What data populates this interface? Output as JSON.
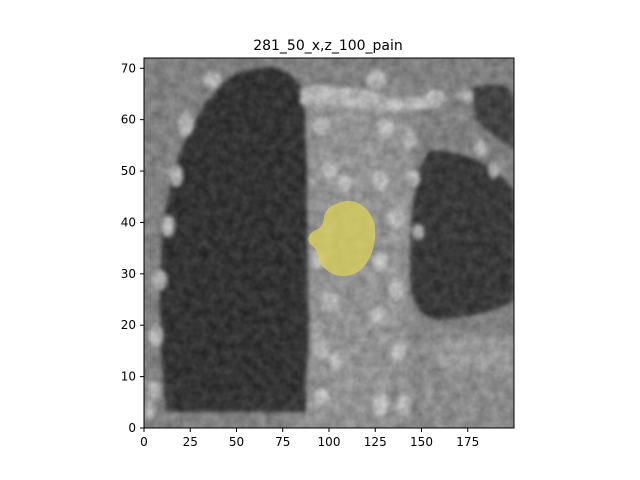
{
  "figure": {
    "title": "281_50_x,z_100_pain"
  },
  "axes": {
    "x_ticks": [
      {
        "value": 0,
        "label": "0"
      },
      {
        "value": 25,
        "label": "25"
      },
      {
        "value": 50,
        "label": "50"
      },
      {
        "value": 75,
        "label": "75"
      },
      {
        "value": 100,
        "label": "100"
      },
      {
        "value": 125,
        "label": "125"
      },
      {
        "value": 150,
        "label": "150"
      },
      {
        "value": 175,
        "label": "175"
      }
    ],
    "y_ticks": [
      {
        "value": 0,
        "label": "0"
      },
      {
        "value": 10,
        "label": "10"
      },
      {
        "value": 20,
        "label": "20"
      },
      {
        "value": 30,
        "label": "30"
      },
      {
        "value": 40,
        "label": "40"
      },
      {
        "value": 50,
        "label": "50"
      },
      {
        "value": 60,
        "label": "60"
      },
      {
        "value": 70,
        "label": "70"
      }
    ],
    "xlim": [
      0,
      200
    ],
    "ylim": [
      0,
      72
    ]
  },
  "image": {
    "description_colormap": "grayscale",
    "overlay_color": "#d8cf5a"
  }
}
